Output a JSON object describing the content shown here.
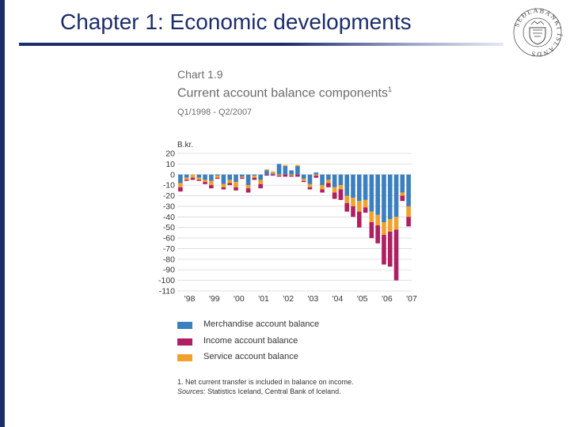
{
  "slide": {
    "title": "Chapter 1: Economic developments",
    "logo_text": "SEÐLABANKI ÍSLANDS"
  },
  "colors": {
    "merchandise": "#3b7fbf",
    "income": "#b01e63",
    "service": "#f0a22c",
    "title": "#1b2d6b",
    "grid": "#d9d9d9"
  },
  "chart_data": {
    "type": "bar",
    "stacked": true,
    "chart_number": "Chart 1.9",
    "title": "Current account balance components",
    "title_footnote_mark": "1",
    "subtitle": "Q1/1998 - Q2/2007",
    "ylabel": "B.kr.",
    "ylim": [
      -110,
      20
    ],
    "yticks": [
      20,
      10,
      0,
      -10,
      -20,
      -30,
      -40,
      -50,
      -60,
      -70,
      -80,
      -90,
      -100,
      -110
    ],
    "xtick_labels": [
      "'98",
      "'99",
      "'00",
      "'01",
      "'02",
      "'03",
      "'04",
      "'05",
      "'06",
      "'07"
    ],
    "categories": [
      "Q1/98",
      "Q2/98",
      "Q3/98",
      "Q4/98",
      "Q1/99",
      "Q2/99",
      "Q3/99",
      "Q4/99",
      "Q1/00",
      "Q2/00",
      "Q3/00",
      "Q4/00",
      "Q1/01",
      "Q2/01",
      "Q3/01",
      "Q4/01",
      "Q1/02",
      "Q2/02",
      "Q3/02",
      "Q4/02",
      "Q1/03",
      "Q2/03",
      "Q3/03",
      "Q4/03",
      "Q1/04",
      "Q2/04",
      "Q3/04",
      "Q4/04",
      "Q1/05",
      "Q2/05",
      "Q3/05",
      "Q4/05",
      "Q1/06",
      "Q2/06",
      "Q3/06",
      "Q4/06",
      "Q1/07",
      "Q2/07"
    ],
    "series": [
      {
        "name": "Merchandise account balance",
        "color_key": "merchandise",
        "values": [
          -8,
          -3,
          0,
          -3,
          -5,
          -6,
          -1,
          -9,
          -5,
          -7,
          -2,
          -10,
          -1,
          -5,
          4,
          1,
          10,
          8,
          4,
          8,
          -4,
          -9,
          2,
          -10,
          -5,
          -12,
          -10,
          -20,
          -22,
          -25,
          -24,
          -35,
          -38,
          -45,
          -42,
          -40,
          -17,
          -30
        ]
      },
      {
        "name": "Service account balance",
        "color_key": "service",
        "values": [
          -4,
          -2,
          -3,
          -2,
          -2,
          -4,
          -2,
          -3,
          -3,
          -5,
          -1,
          -3,
          -2,
          -4,
          1,
          2,
          -1,
          1,
          -1,
          1,
          -2,
          -3,
          -1,
          -4,
          -3,
          -5,
          -4,
          -7,
          -8,
          -10,
          -7,
          -10,
          -10,
          -12,
          -12,
          -12,
          -3,
          -10
        ]
      },
      {
        "name": "Income account balance",
        "color_key": "income",
        "values": [
          -4,
          -1,
          -2,
          -1,
          -2,
          -3,
          -1,
          -2,
          -2,
          -3,
          -1,
          -4,
          -2,
          -4,
          -1,
          -1,
          -1,
          -2,
          -1,
          -2,
          -1,
          -2,
          -2,
          -3,
          -4,
          -6,
          -10,
          -8,
          -10,
          -15,
          -5,
          -15,
          -17,
          -28,
          -33,
          -48,
          -5,
          -9
        ]
      }
    ],
    "legend": [
      {
        "label": "Merchandise account balance",
        "color_key": "merchandise"
      },
      {
        "label": "Income account balance",
        "color_key": "income"
      },
      {
        "label": "Service account balance",
        "color_key": "service"
      }
    ],
    "legend_position": "bottom",
    "grid": true,
    "footnote": "1. Net current transfer is included in balance on income.",
    "sources_label": "Sources:",
    "sources_text": " Statistics Iceland, Central Bank of Iceland."
  }
}
